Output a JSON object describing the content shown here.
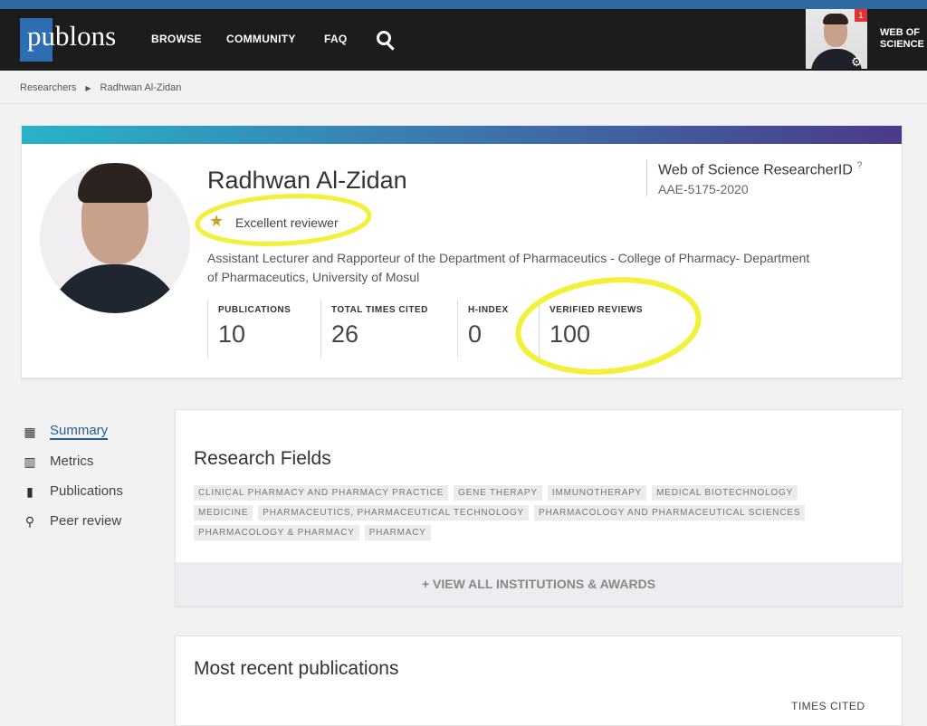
{
  "nav": {
    "logo": "publons",
    "links": [
      "BROWSE",
      "COMMUNITY",
      "FAQ"
    ],
    "notification_count": "1",
    "wos_label": "WEB OF SCIENCE"
  },
  "breadcrumb": {
    "items": [
      "Researchers",
      "Radhwan Al-Zidan"
    ]
  },
  "profile": {
    "name": "Radhwan Al-Zidan",
    "badge": "Excellent reviewer",
    "affiliation": "Assistant Lecturer and Rapporteur of the Department of Pharmaceutics - College of Pharmacy- Department of Pharmaceutics, University of Mosul",
    "researcher_id_label": "Web of Science ResearcherID",
    "researcher_id": "AAE-5175-2020",
    "stats": [
      {
        "label": "PUBLICATIONS",
        "value": "10"
      },
      {
        "label": "TOTAL TIMES CITED",
        "value": "26"
      },
      {
        "label": "H-INDEX",
        "value": "0"
      },
      {
        "label": "VERIFIED REVIEWS",
        "value": "100"
      }
    ]
  },
  "sidebar": {
    "items": [
      {
        "label": "Summary",
        "icon": "grid-icon"
      },
      {
        "label": "Metrics",
        "icon": "bar-chart-icon"
      },
      {
        "label": "Publications",
        "icon": "book-icon"
      },
      {
        "label": "Peer review",
        "icon": "search-icon"
      }
    ]
  },
  "research_fields": {
    "title": "Research Fields",
    "tags": [
      "Clinical Pharmacy and Pharmacy Practice",
      "Gene Therapy",
      "Immunotherapy",
      "Medical Biotechnology",
      "Medicine",
      "Pharmaceutics, Pharmaceutical Technology",
      "Pharmacology and Pharmaceutical Sciences",
      "Pharmacology & Pharmacy",
      "Pharmacy"
    ],
    "view_all": "+ VIEW ALL INSTITUTIONS & AWARDS"
  },
  "recent": {
    "title": "Most recent publications",
    "times_cited_header": "TIMES CITED"
  },
  "colors": {
    "highlight": "#f2f03a",
    "accent": "#2b5d8c",
    "nav": "#1c1c1c"
  }
}
